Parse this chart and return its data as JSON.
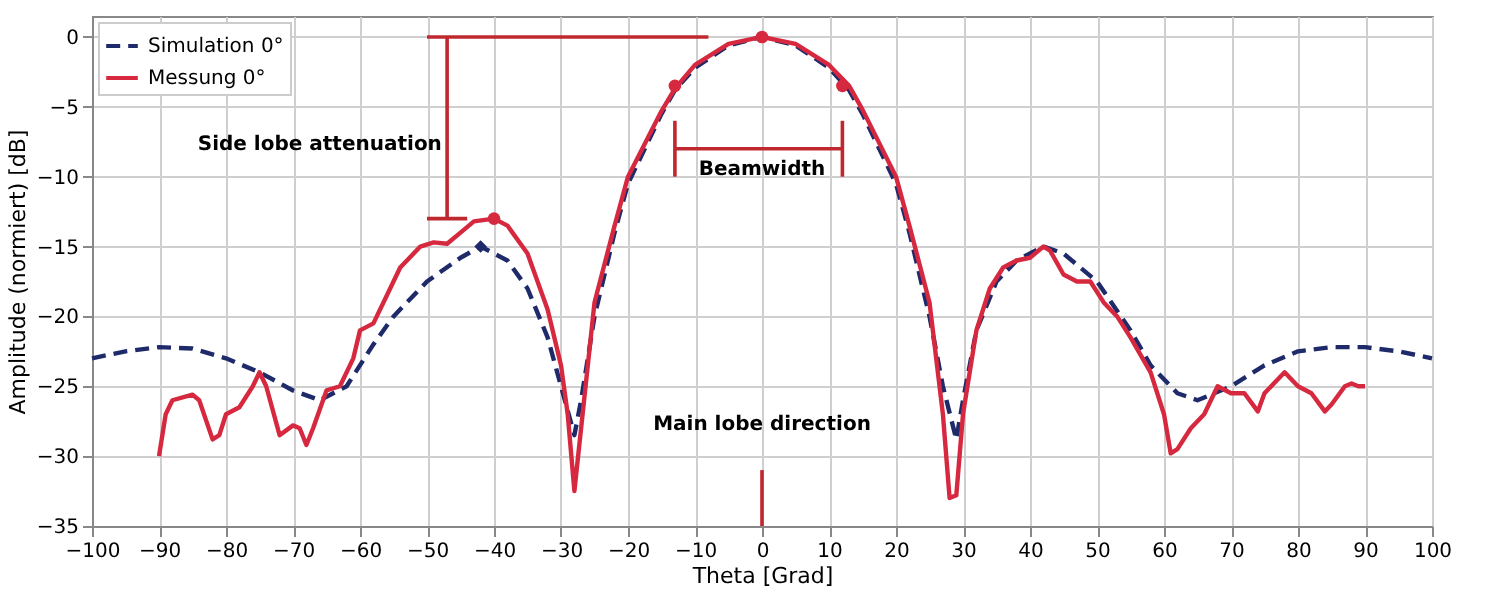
{
  "chart_data": {
    "type": "line",
    "xlabel": "Theta [Grad]",
    "ylabel": "Amplitude (normiert) [dB]",
    "xlim": [
      -100,
      100
    ],
    "xticks": [
      -100,
      -90,
      -80,
      -70,
      -60,
      -50,
      -40,
      -30,
      -20,
      -10,
      0,
      10,
      20,
      30,
      40,
      50,
      60,
      70,
      80,
      90,
      100
    ],
    "ylim": [
      -35,
      1.5
    ],
    "yticks": [
      -35,
      -30,
      -25,
      -20,
      -15,
      -10,
      -5,
      0
    ],
    "grid": true,
    "legend": "top left",
    "series": [
      {
        "name": "Simulation 0°",
        "color": "#1f2a6b",
        "line_style": "dashed",
        "x": [
          -100,
          -95,
          -90,
          -85,
          -80,
          -75,
          -70,
          -66,
          -62,
          -58,
          -55,
          -50,
          -45,
          -42,
          -38,
          -35,
          -32,
          -30,
          -28,
          -27,
          -25,
          -22,
          -20,
          -15,
          -13,
          -10,
          -5,
          0,
          5,
          10,
          13,
          15,
          20,
          22,
          25,
          27,
          29,
          30,
          32,
          35,
          38,
          42,
          45,
          50,
          55,
          58,
          62,
          65,
          70,
          75,
          80,
          85,
          90,
          95,
          100
        ],
        "values": [
          -23,
          -22.5,
          -22.2,
          -22.3,
          -23,
          -24,
          -25.3,
          -26,
          -25,
          -22,
          -20,
          -17.5,
          -15.8,
          -15,
          -16,
          -18,
          -21.5,
          -25,
          -28.5,
          -26,
          -20,
          -14,
          -10.5,
          -5.5,
          -3.8,
          -2.2,
          -0.6,
          0,
          -0.6,
          -2.2,
          -3.8,
          -5.5,
          -10.5,
          -14,
          -20,
          -25,
          -28.8,
          -26,
          -21,
          -17.5,
          -16,
          -15,
          -15.5,
          -17.5,
          -21,
          -23.5,
          -25.5,
          -26,
          -25,
          -23.5,
          -22.5,
          -22.2,
          -22.2,
          -22.5,
          -23
        ]
      },
      {
        "name": "Messung 0°",
        "color": "#d6283f",
        "line_style": "solid",
        "x": [
          -90,
          -89,
          -88,
          -85,
          -84,
          -82,
          -81,
          -80,
          -78,
          -76,
          -75,
          -74,
          -72,
          -70,
          -69,
          -68,
          -67,
          -65,
          -63,
          -61,
          -60,
          -58,
          -56,
          -54,
          -51,
          -49,
          -47,
          -45,
          -43,
          -40,
          -38,
          -35,
          -32,
          -30,
          -29,
          -28,
          -27,
          -25,
          -22,
          -20,
          -15,
          -13,
          -10,
          -5,
          0,
          5,
          10,
          13,
          15,
          20,
          22,
          25,
          27,
          28,
          29,
          30,
          32,
          34,
          36,
          38,
          40,
          42,
          43,
          45,
          47,
          49,
          51,
          53,
          55,
          58,
          60,
          61,
          62,
          64,
          66,
          68,
          70,
          72,
          74,
          75,
          77,
          78,
          79,
          80,
          82,
          84,
          85,
          87,
          88,
          89,
          90
        ],
        "values": [
          -30,
          -27,
          -26,
          -25.6,
          -26,
          -28.8,
          -28.5,
          -27,
          -26.5,
          -25,
          -24,
          -25,
          -28.5,
          -27.8,
          -28,
          -29.2,
          -28,
          -25.3,
          -25,
          -23,
          -21,
          -20.5,
          -18.5,
          -16.5,
          -15,
          -14.7,
          -14.8,
          -14,
          -13.2,
          -13,
          -13.5,
          -15.5,
          -19.5,
          -23.5,
          -27,
          -32.5,
          -28,
          -19,
          -13.5,
          -10,
          -5.3,
          -3.7,
          -2,
          -0.5,
          0,
          -0.5,
          -2,
          -3.5,
          -5.2,
          -10,
          -13.5,
          -19,
          -27,
          -33,
          -32.8,
          -27,
          -21,
          -18,
          -16.5,
          -16,
          -15.8,
          -15,
          -15.3,
          -17,
          -17.5,
          -17.5,
          -19,
          -20,
          -21.5,
          -24,
          -27,
          -29.8,
          -29.5,
          -28,
          -27,
          -25,
          -25.5,
          -25.5,
          -26.8,
          -25.5,
          -24.5,
          -24,
          -24.5,
          -25,
          -25.5,
          -26.8,
          -26.3,
          -25,
          -24.8,
          -25,
          -25
        ]
      },
      {
        "type": "line",
        "color": "#c0282f",
        "line_style": "solid",
        "x": [
          -50,
          -8,
          null,
          -47,
          -47,
          null,
          -50,
          -44,
          null,
          -13,
          12,
          null,
          -13,
          -13,
          null,
          12,
          12,
          null,
          0,
          0
        ],
        "values": [
          0,
          0,
          null,
          0,
          -13,
          null,
          -13,
          -13,
          null,
          -8,
          -8,
          null,
          -6,
          -10,
          null,
          -6,
          -10,
          null,
          -31,
          -35
        ]
      },
      {
        "type": "scatter",
        "color": "#1f2a6b",
        "marker": "diamond",
        "x": [
          -42
        ],
        "values": [
          -15
        ]
      },
      {
        "type": "scatter",
        "color": "#d6283f",
        "marker": "circle",
        "x": [
          -40,
          0,
          -13,
          12
        ],
        "values": [
          -13,
          0,
          -3.5,
          -3.5
        ]
      }
    ],
    "annotations": [
      "Side lobe attenuation",
      "Beamwidth",
      "Main lobe direction"
    ]
  }
}
